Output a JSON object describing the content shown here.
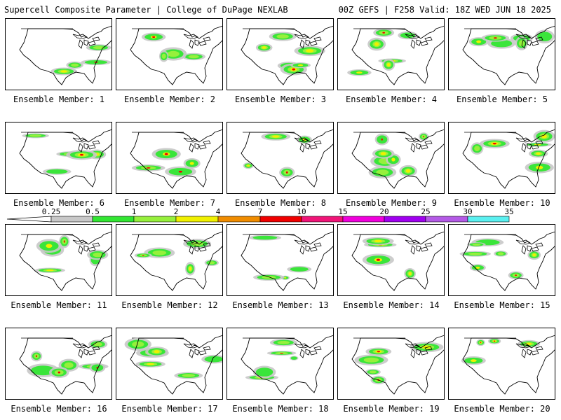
{
  "header": {
    "title": "Supercell Composite Parameter | College of DuPage NEXLAB",
    "run_info": "00Z GEFS | F258 Valid: 18Z WED JUN 18 2025"
  },
  "colorbar": {
    "labels": [
      "0.25",
      "0.5",
      "1",
      "2",
      "4",
      "7",
      "10",
      "15",
      "20",
      "25",
      "30",
      "35"
    ],
    "colors": [
      "#c8c8c8",
      "#32e632",
      "#96f03c",
      "#f0f000",
      "#f08c00",
      "#f00000",
      "#f01478",
      "#f000dc",
      "#a000f0",
      "#b45ae6",
      "#5af0f0"
    ]
  },
  "members": [
    {
      "label": "Ensemble Member: 1"
    },
    {
      "label": "Ensemble Member: 2"
    },
    {
      "label": "Ensemble Member: 3"
    },
    {
      "label": "Ensemble Member: 4"
    },
    {
      "label": "Ensemble Member: 5"
    },
    {
      "label": "Ensemble Member: 6"
    },
    {
      "label": "Ensemble Member: 7"
    },
    {
      "label": "Ensemble Member: 8"
    },
    {
      "label": "Ensemble Member: 9"
    },
    {
      "label": "Ensemble Member: 10"
    },
    {
      "label": "Ensemble Member: 11"
    },
    {
      "label": "Ensemble Member: 12"
    },
    {
      "label": "Ensemble Member: 13"
    },
    {
      "label": "Ensemble Member: 14"
    },
    {
      "label": "Ensemble Member: 15"
    },
    {
      "label": "Ensemble Member: 16"
    },
    {
      "label": "Ensemble Member: 17"
    },
    {
      "label": "Ensemble Member: 18"
    },
    {
      "label": "Ensemble Member: 19"
    },
    {
      "label": "Ensemble Member: 20"
    }
  ]
}
